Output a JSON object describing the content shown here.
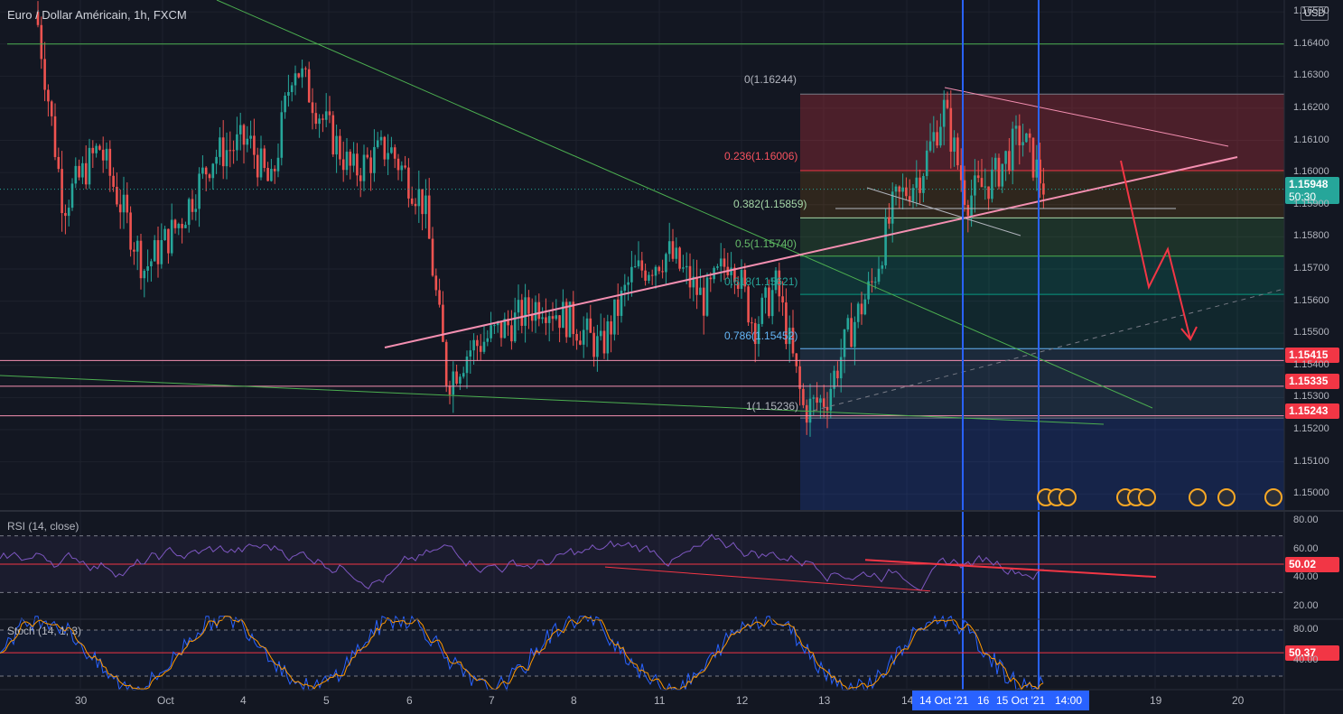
{
  "header": {
    "symbol_title": "Euro / Dollar Américain, 1h, FXCM",
    "currency": "USD"
  },
  "price_axis": {
    "ticks": [
      "1.16500",
      "1.16400",
      "1.16300",
      "1.16200",
      "1.16100",
      "1.16000",
      "1.15900",
      "1.15800",
      "1.15700",
      "1.15600",
      "1.15500",
      "1.15400",
      "1.15300",
      "1.15200",
      "1.15100",
      "1.15000"
    ]
  },
  "price_tags": {
    "last_price": "1.15948",
    "countdown": "50:30",
    "level_1": "1.15415",
    "level_2": "1.15335",
    "level_3": "1.15243"
  },
  "fib_labels": {
    "f0": "0(1.16244)",
    "f236": "0.236(1.16006)",
    "f382": "0.382(1.15859)",
    "f5": "0.5(1.15740)",
    "f618": "0.618(1.15621)",
    "f786": "0.786(1.15452)",
    "f1": "1(1.15236)"
  },
  "rsi": {
    "title": "RSI (14, close)",
    "ticks": [
      "80.00",
      "60.00",
      "40.00",
      "20.00"
    ],
    "value": "50.02"
  },
  "stoch": {
    "title": "Stoch (14, 1, 3)",
    "ticks": [
      "80.00",
      "40.00"
    ],
    "value": "50.37"
  },
  "time_axis": {
    "ticks": [
      "30",
      "Oct",
      "4",
      "5",
      "6",
      "7",
      "8",
      "11",
      "12",
      "13",
      "14",
      "16",
      "19",
      "20"
    ],
    "highlight_1": "14 Oct '21",
    "highlight_2": "15 Oct '21",
    "highlight_3": "14:00"
  },
  "colors": {
    "background": "#131722",
    "bull": "#26a69a",
    "bear": "#ef5350",
    "pink": "#f48fb1",
    "green_line": "#4caf50",
    "blue_vline": "#2962ff",
    "rsi_line": "#7e57c2",
    "stoch_k": "#2962ff",
    "stoch_d": "#ff9800"
  },
  "chart_data": {
    "type": "candlestick",
    "title": "Euro / Dollar Américain, 1h, FXCM",
    "ylim": [
      1.1495,
      1.1652
    ],
    "fibonacci": [
      {
        "level": 0,
        "price": 1.16244
      },
      {
        "level": 0.236,
        "price": 1.16006
      },
      {
        "level": 0.382,
        "price": 1.15859
      },
      {
        "level": 0.5,
        "price": 1.1574
      },
      {
        "level": 0.618,
        "price": 1.15621
      },
      {
        "level": 0.786,
        "price": 1.15452
      },
      {
        "level": 1,
        "price": 1.15236
      }
    ],
    "horizontal_levels": [
      1.164,
      1.15415,
      1.15335,
      1.15243
    ],
    "last_price": 1.15948,
    "rsi_last": 50.02,
    "stoch_last": 50.37,
    "price_path": [
      [
        "29 Sep",
        1.165
      ],
      [
        "30 Sep",
        1.159
      ],
      [
        "30 Sep",
        1.161
      ],
      [
        "1 Oct",
        1.157
      ],
      [
        "1 Oct",
        1.1605
      ],
      [
        "4 Oct",
        1.162
      ],
      [
        "4 Oct",
        1.164
      ],
      [
        "5 Oct",
        1.1605
      ],
      [
        "5 Oct",
        1.16
      ],
      [
        "6 Oct",
        1.158
      ],
      [
        "6 Oct",
        1.1535
      ],
      [
        "7 Oct",
        1.1555
      ],
      [
        "7 Oct",
        1.1565
      ],
      [
        "8 Oct",
        1.1545
      ],
      [
        "8 Oct",
        1.157
      ],
      [
        "11 Oct",
        1.158
      ],
      [
        "11 Oct",
        1.1565
      ],
      [
        "12 Oct",
        1.155
      ],
      [
        "12 Oct",
        1.1555
      ],
      [
        "13 Oct",
        1.1524
      ],
      [
        "13 Oct",
        1.155
      ],
      [
        "13 Oct",
        1.1565
      ],
      [
        "14 Oct",
        1.16
      ],
      [
        "14 Oct",
        1.1622
      ],
      [
        "14 Oct",
        1.159
      ],
      [
        "15 Oct",
        1.1615
      ],
      [
        "15 Oct",
        1.1595
      ]
    ]
  }
}
